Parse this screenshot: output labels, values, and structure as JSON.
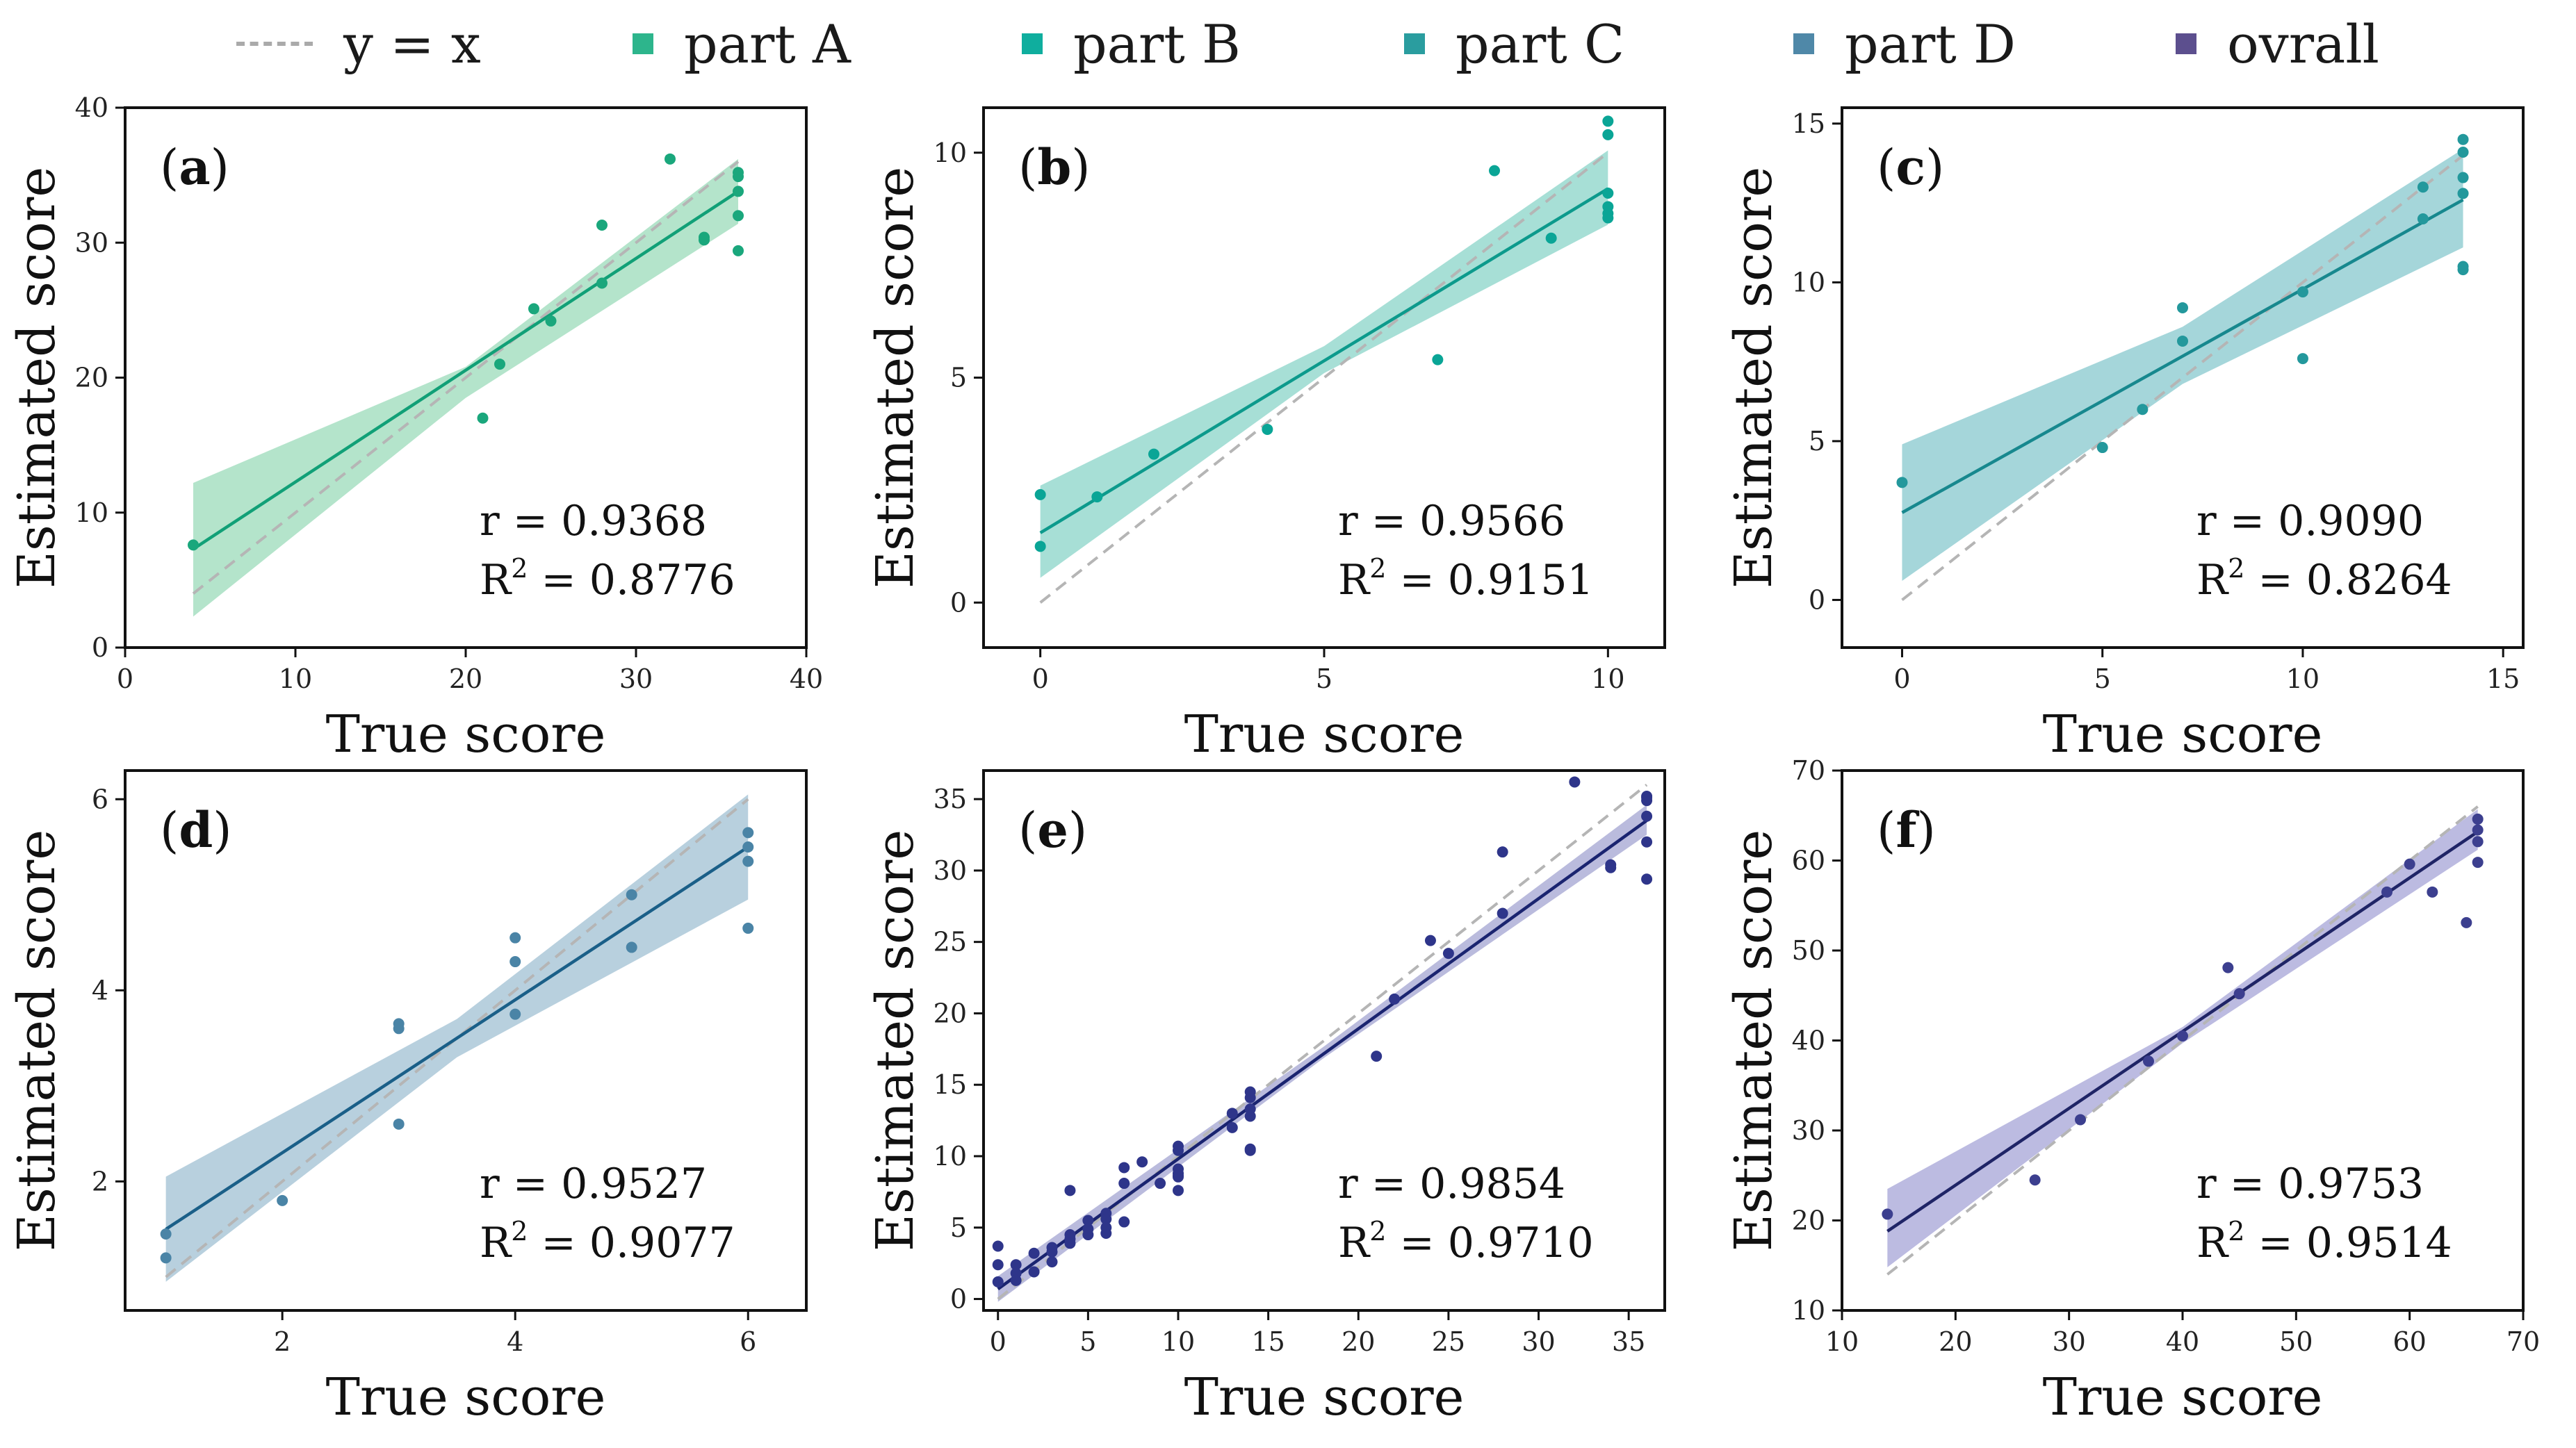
{
  "legend": [
    {
      "label": "y = x",
      "type": "line",
      "color": "#aaaaaa"
    },
    {
      "label": "part A",
      "type": "marker",
      "color": "#2db58c"
    },
    {
      "label": "part B",
      "type": "marker",
      "color": "#0fae9e"
    },
    {
      "label": "part C",
      "type": "marker",
      "color": "#2a9d9f"
    },
    {
      "label": "part D",
      "type": "marker",
      "color": "#4f88a8"
    },
    {
      "label": "ovrall",
      "type": "marker",
      "color": "#5c4f8e"
    }
  ],
  "chart_data": [
    {
      "type": "scatter",
      "panel_label": "a",
      "xlabel": "True score",
      "ylabel": "Estimated score",
      "xlim": [
        0,
        40
      ],
      "ylim": [
        0,
        40
      ],
      "xticks": [
        0,
        10,
        20,
        30,
        40
      ],
      "yticks": [
        0,
        10,
        20,
        30,
        40
      ],
      "r_text": "r = 0.9368",
      "r2_prefix": "R",
      "r2_sup": "2",
      "r2_value": " = 0.8776",
      "point_color": "#1aa77c",
      "line_color": "#11a077",
      "band_color": "#9fdcbc",
      "fit": {
        "x": [
          4,
          36
        ],
        "y": [
          7.3,
          33.8
        ]
      },
      "band": {
        "x": [
          4,
          20,
          36
        ],
        "lower": [
          2.3,
          18.5,
          31.4
        ],
        "upper": [
          12.2,
          20.8,
          36.2
        ]
      },
      "x": [
        4,
        21,
        22,
        24,
        25,
        28,
        28,
        32,
        34,
        34,
        36,
        36,
        36,
        36,
        36
      ],
      "y": [
        7.6,
        17,
        21,
        25.1,
        24.2,
        31.3,
        27,
        36.2,
        30.4,
        30.2,
        35.2,
        34.9,
        33.8,
        32,
        29.4
      ]
    },
    {
      "type": "scatter",
      "panel_label": "b",
      "xlabel": "True score",
      "ylabel": "Estimated score",
      "xlim": [
        -1,
        11
      ],
      "ylim": [
        -1,
        11
      ],
      "xticks": [
        0,
        5,
        10
      ],
      "yticks": [
        0,
        5,
        10
      ],
      "r_text": "r = 0.9566",
      "r2_prefix": "R",
      "r2_sup": "2",
      "r2_value": " = 0.9151",
      "point_color": "#0aa596",
      "line_color": "#0c9a8c",
      "band_color": "#8ed6cb",
      "fit": {
        "x": [
          0,
          10
        ],
        "y": [
          1.55,
          9.2
        ]
      },
      "band": {
        "x": [
          0,
          5,
          10
        ],
        "lower": [
          0.55,
          5.1,
          8.4
        ],
        "upper": [
          2.6,
          5.7,
          10.05
        ]
      },
      "x": [
        0,
        0,
        1,
        2,
        4,
        7,
        8,
        9,
        10,
        10,
        10,
        10,
        10,
        10
      ],
      "y": [
        2.4,
        1.25,
        2.35,
        3.3,
        3.85,
        5.4,
        9.6,
        8.1,
        10.7,
        10.4,
        9.1,
        8.8,
        8.65,
        8.55
      ]
    },
    {
      "type": "scatter",
      "panel_label": "c",
      "xlabel": "True score",
      "ylabel": "Estimated score",
      "xlim": [
        -1.5,
        15.5
      ],
      "ylim": [
        -1.5,
        15.5
      ],
      "xticks": [
        0,
        5,
        10,
        15
      ],
      "yticks": [
        0,
        5,
        10,
        15
      ],
      "r_text": "r = 0.9090",
      "r2_prefix": "R",
      "r2_sup": "2",
      "r2_value": " = 0.8264",
      "point_color": "#23989c",
      "line_color": "#17888e",
      "band_color": "#8ccad0",
      "fit": {
        "x": [
          0,
          14
        ],
        "y": [
          2.75,
          12.6
        ]
      },
      "band": {
        "x": [
          0,
          7,
          14
        ],
        "lower": [
          0.6,
          6.8,
          11.1
        ],
        "upper": [
          4.9,
          8.6,
          14.2
        ]
      },
      "x": [
        0,
        5,
        6,
        7,
        7,
        10,
        10,
        13,
        13,
        14,
        14,
        14,
        14,
        14,
        14
      ],
      "y": [
        3.7,
        4.8,
        6,
        9.2,
        8.15,
        9.7,
        7.6,
        13,
        12,
        14.5,
        14.1,
        13.3,
        12.8,
        10.5,
        10.4
      ]
    },
    {
      "type": "scatter",
      "panel_label": "d",
      "xlabel": "True score",
      "ylabel": "Estimated score",
      "xlim": [
        0.65,
        6.5
      ],
      "ylim": [
        0.65,
        6.3
      ],
      "xticks": [
        2,
        4,
        6
      ],
      "yticks": [
        2,
        4,
        6
      ],
      "r_text": "r = 0.9527",
      "r2_prefix": "R",
      "r2_sup": "2",
      "r2_value": " = 0.9077",
      "point_color": "#4a84a6",
      "line_color": "#1a5f88",
      "band_color": "#a4c3d5",
      "fit": {
        "x": [
          1,
          6
        ],
        "y": [
          1.5,
          5.5
        ]
      },
      "band": {
        "x": [
          1,
          3.5,
          6
        ],
        "lower": [
          0.95,
          3.3,
          4.95
        ],
        "upper": [
          2.05,
          3.7,
          6.05
        ]
      },
      "x": [
        1,
        1,
        2,
        3,
        3,
        3,
        4,
        4,
        4,
        5,
        5,
        6,
        6,
        6,
        6
      ],
      "y": [
        1.45,
        1.2,
        1.8,
        3.65,
        3.6,
        2.6,
        4.55,
        4.3,
        3.75,
        5,
        4.45,
        5.65,
        5.5,
        5.35,
        4.65
      ]
    },
    {
      "type": "scatter",
      "panel_label": "e",
      "xlabel": "True score",
      "ylabel": "Estimated score",
      "xlim": [
        -0.8,
        37
      ],
      "ylim": [
        -0.8,
        37
      ],
      "xticks": [
        0,
        5,
        10,
        15,
        20,
        25,
        30,
        35
      ],
      "yticks": [
        0,
        5,
        10,
        15,
        20,
        25,
        30,
        35
      ],
      "r_text": "r = 0.9854",
      "r2_prefix": "R",
      "r2_sup": "2",
      "r2_value": " = 0.9710",
      "point_color": "#2e358a",
      "line_color": "#1a2470",
      "band_color": "#a7a8d3",
      "fit": {
        "x": [
          0,
          36
        ],
        "y": [
          0.7,
          33.5
        ]
      },
      "band": {
        "x": [
          0,
          18,
          36
        ],
        "lower": [
          -0.2,
          16.8,
          32.5
        ],
        "upper": [
          1.6,
          17.6,
          34.6
        ]
      },
      "x": [
        0,
        0,
        0,
        1,
        1,
        1,
        2,
        2,
        3,
        3,
        3,
        4,
        4,
        4,
        4,
        5,
        5,
        5,
        6,
        6,
        6,
        6,
        7,
        7,
        7,
        8,
        9,
        10,
        10,
        10,
        10,
        10,
        10,
        10,
        13,
        13,
        14,
        14,
        14,
        14,
        14,
        14,
        21,
        22,
        24,
        25,
        28,
        28,
        32,
        34,
        34,
        36,
        36,
        36,
        36,
        36,
        36
      ],
      "y": [
        3.7,
        2.4,
        1.2,
        2.4,
        1.8,
        1.3,
        3.2,
        1.9,
        3.6,
        3.3,
        2.6,
        7.6,
        4.5,
        4.2,
        3.9,
        4.9,
        5.5,
        4.5,
        6,
        5.6,
        5,
        4.6,
        9.2,
        8.1,
        5.4,
        9.6,
        8.1,
        10.7,
        10.4,
        9.1,
        8.8,
        8.65,
        8.55,
        7.6,
        13,
        12,
        14.5,
        14.1,
        13.3,
        12.8,
        10.5,
        10.4,
        17,
        21,
        25.1,
        24.2,
        31.3,
        27,
        36.2,
        30.4,
        30.2,
        35.2,
        34.9,
        33.8,
        32,
        29.4,
        35.1
      ]
    },
    {
      "type": "scatter",
      "panel_label": "f",
      "xlabel": "True score",
      "ylabel": "Estimated score",
      "xlim": [
        10,
        70
      ],
      "ylim": [
        10,
        70
      ],
      "xticks": [
        10,
        20,
        30,
        40,
        50,
        60,
        70
      ],
      "yticks": [
        10,
        20,
        30,
        40,
        50,
        60,
        70
      ],
      "r_text": "r = 0.9753",
      "r2_prefix": "R",
      "r2_sup": "2",
      "r2_value": " = 0.9514",
      "point_color": "#3c3f8f",
      "line_color": "#1f2466",
      "band_color": "#a9a8d8",
      "fit": {
        "x": [
          14,
          66
        ],
        "y": [
          18.8,
          63.2
        ]
      },
      "band": {
        "x": [
          14,
          40,
          66
        ],
        "lower": [
          14.8,
          39.7,
          61.2
        ],
        "upper": [
          23.5,
          41.5,
          65.7
        ]
      },
      "x": [
        14,
        27,
        31,
        37,
        40,
        44,
        45,
        58,
        60,
        62,
        65,
        66,
        66,
        66,
        66
      ],
      "y": [
        20.7,
        24.5,
        31.2,
        37.7,
        40.5,
        48.1,
        45.2,
        56.5,
        59.6,
        56.5,
        53.1,
        64.6,
        63.4,
        62.1,
        59.8
      ]
    }
  ]
}
